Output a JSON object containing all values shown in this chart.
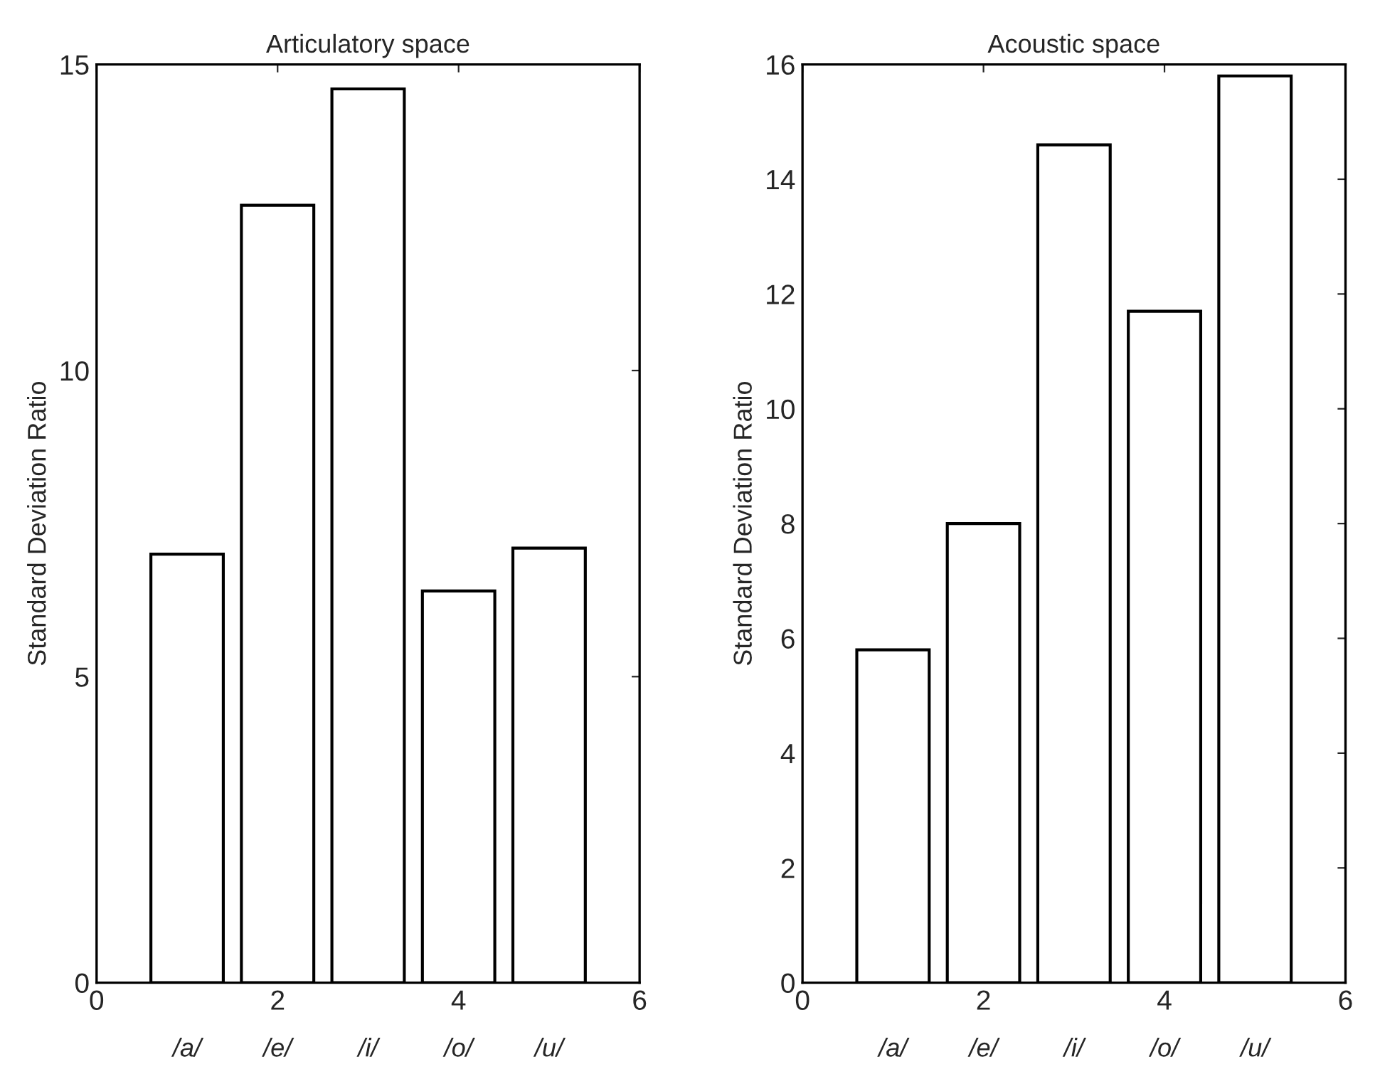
{
  "chart_data": [
    {
      "type": "bar",
      "title": "Articulatory space",
      "ylabel": "Standard Deviation Ratio",
      "x": [
        1,
        2,
        3,
        4,
        5
      ],
      "values": [
        7.0,
        12.7,
        14.6,
        6.4,
        7.1
      ],
      "color": "#ffffff",
      "xlim": [
        0,
        6
      ],
      "xticks": [
        0,
        2,
        4,
        6
      ],
      "ylim": [
        0,
        15
      ],
      "yticks": [
        0,
        5,
        10,
        15
      ],
      "grid": false,
      "annotations": [
        "/a/",
        "/e/",
        "/i/",
        "/o/",
        "/u/"
      ]
    },
    {
      "type": "bar",
      "title": "Acoustic space",
      "ylabel": "Standard Deviation Ratio",
      "x": [
        1,
        2,
        3,
        4,
        5
      ],
      "values": [
        5.8,
        8.0,
        14.6,
        11.7,
        15.8
      ],
      "color": "#ffffff",
      "xlim": [
        0,
        6
      ],
      "xticks": [
        0,
        2,
        4,
        6
      ],
      "ylim": [
        0,
        16
      ],
      "yticks": [
        0,
        2,
        4,
        6,
        8,
        10,
        12,
        14,
        16
      ],
      "grid": false,
      "annotations": [
        "/a/",
        "/e/",
        "/i/",
        "/o/",
        "/u/"
      ]
    }
  ]
}
